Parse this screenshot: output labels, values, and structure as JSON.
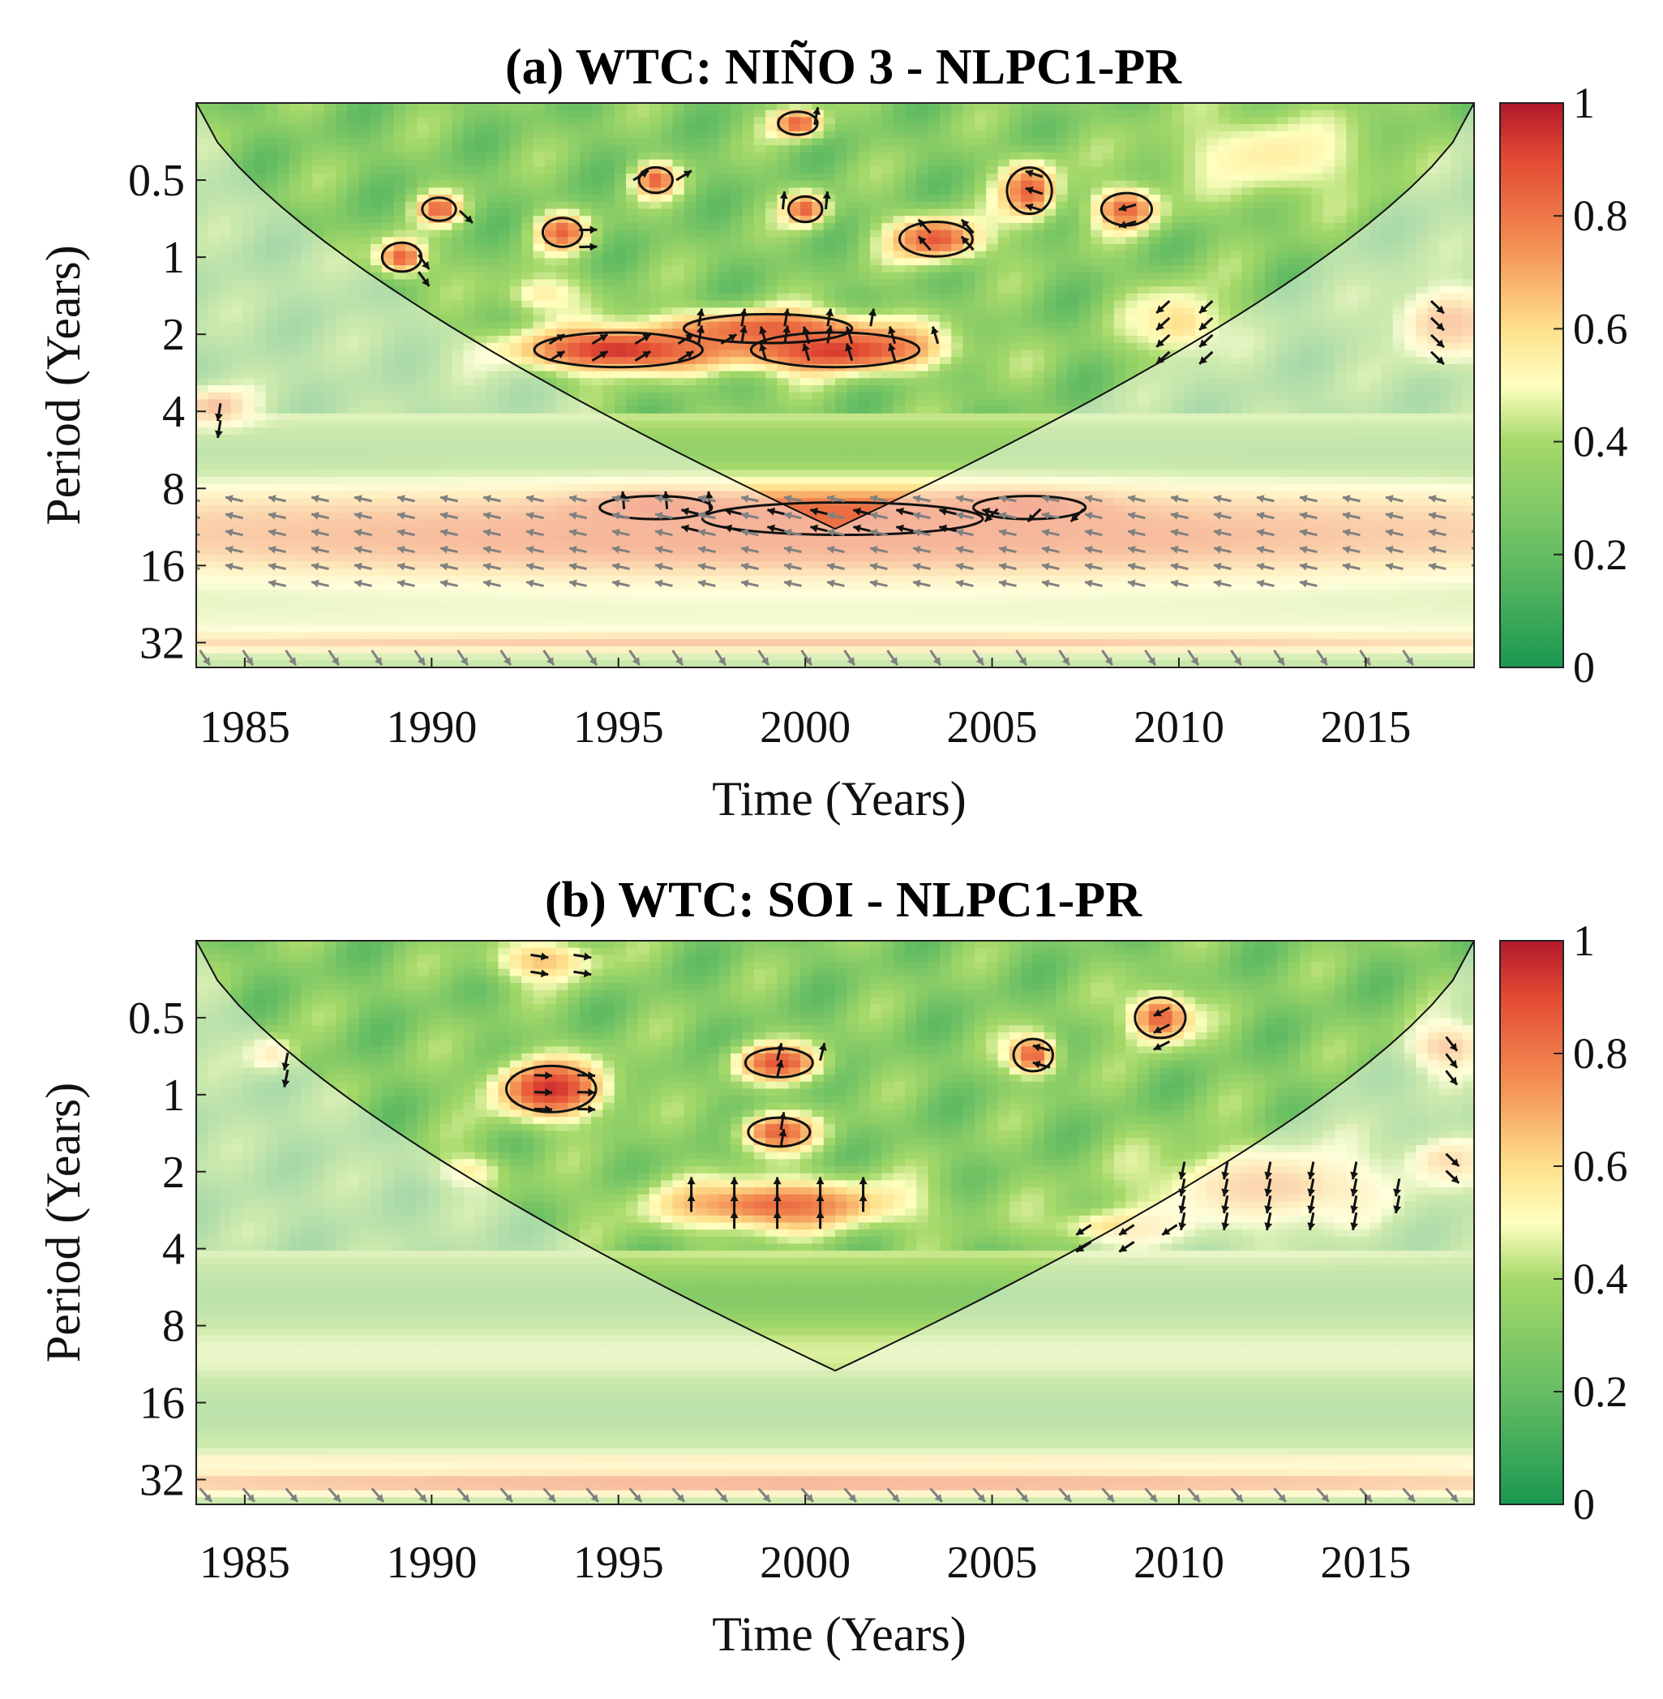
{
  "chart_data": [
    {
      "type": "heatmap",
      "panel": "a",
      "title": "(a) WTC: NIÑO 3 - NLPC1-PR",
      "xlabel": "Time (Years)",
      "ylabel": "Period (Years)",
      "xlim": [
        1983.7,
        2017.9
      ],
      "ylim": [
        0.25,
        40
      ],
      "yscale": "log2",
      "x_ticks": [
        1985,
        1990,
        1995,
        2000,
        2005,
        2010,
        2015
      ],
      "y_ticks": [
        0.5,
        1,
        2,
        4,
        8,
        16,
        32
      ],
      "colorbar": {
        "min": 0,
        "max": 1,
        "ticks": [
          0,
          0.2,
          0.4,
          0.6,
          0.8,
          1
        ],
        "colormap": "green-yellow-red"
      },
      "regions": [
        {
          "x": 1995.0,
          "y": 2.3,
          "rx": 3.0,
          "ry": 0.3,
          "value": 0.95
        },
        {
          "x": 2000.8,
          "y": 2.3,
          "rx": 3.0,
          "ry": 0.3,
          "value": 0.95
        },
        {
          "x": 1999.0,
          "y": 1.9,
          "rx": 3.0,
          "ry": 0.25,
          "value": 0.85
        },
        {
          "x": 2001.0,
          "y": 10.5,
          "rx": 5.0,
          "ry": 0.28,
          "value": 0.97
        },
        {
          "x": 1996.0,
          "y": 9.5,
          "rx": 2.0,
          "ry": 0.2,
          "value": 0.9
        },
        {
          "x": 2006.0,
          "y": 9.5,
          "rx": 2.0,
          "ry": 0.2,
          "value": 0.9
        },
        {
          "x": 2000.0,
          "y": 12.5,
          "rx": 30.0,
          "ry": 0.7,
          "value": 0.8
        },
        {
          "x": 2000.0,
          "y": 32.0,
          "rx": 30.0,
          "ry": 0.12,
          "value": 0.72
        },
        {
          "x": 1984.2,
          "y": 3.8,
          "rx": 1.0,
          "ry": 0.25,
          "value": 0.75
        },
        {
          "x": 2017.2,
          "y": 1.8,
          "rx": 1.6,
          "ry": 0.5,
          "value": 0.72
        },
        {
          "x": 1990.2,
          "y": 0.65,
          "rx": 0.6,
          "ry": 0.2,
          "value": 0.85
        },
        {
          "x": 1989.2,
          "y": 1.0,
          "rx": 0.7,
          "ry": 0.25,
          "value": 0.85
        },
        {
          "x": 1993.5,
          "y": 0.8,
          "rx": 0.7,
          "ry": 0.25,
          "value": 0.85
        },
        {
          "x": 1996.0,
          "y": 0.5,
          "rx": 0.6,
          "ry": 0.22,
          "value": 0.85
        },
        {
          "x": 1999.8,
          "y": 0.3,
          "rx": 0.7,
          "ry": 0.2,
          "value": 0.85
        },
        {
          "x": 2000.0,
          "y": 0.65,
          "rx": 0.6,
          "ry": 0.22,
          "value": 0.85
        },
        {
          "x": 2003.5,
          "y": 0.85,
          "rx": 1.3,
          "ry": 0.3,
          "value": 0.87
        },
        {
          "x": 2006.0,
          "y": 0.55,
          "rx": 0.8,
          "ry": 0.4,
          "value": 0.85
        },
        {
          "x": 2008.6,
          "y": 0.65,
          "rx": 0.9,
          "ry": 0.28,
          "value": 0.85
        },
        {
          "x": 2010.0,
          "y": 1.8,
          "rx": 1.4,
          "ry": 0.5,
          "value": 0.6
        },
        {
          "x": 1993.0,
          "y": 1.4,
          "rx": 1.2,
          "ry": 0.3,
          "value": 0.55
        },
        {
          "x": 2012.5,
          "y": 0.4,
          "rx": 3.0,
          "ry": 0.6,
          "value": 0.55
        }
      ]
    },
    {
      "type": "heatmap",
      "panel": "b",
      "title": "(b) WTC: SOI - NLPC1-PR",
      "xlabel": "Time (Years)",
      "ylabel": "Period (Years)",
      "xlim": [
        1983.7,
        2017.9
      ],
      "ylim": [
        0.25,
        40
      ],
      "yscale": "log2",
      "x_ticks": [
        1985,
        1990,
        1995,
        2000,
        2005,
        2010,
        2015
      ],
      "y_ticks": [
        0.5,
        1,
        2,
        4,
        8,
        16,
        32
      ],
      "colorbar": {
        "min": 0,
        "max": 1,
        "ticks": [
          0,
          0.2,
          0.4,
          0.6,
          0.8,
          1
        ],
        "colormap": "green-yellow-red"
      },
      "regions": [
        {
          "x": 1993.2,
          "y": 0.95,
          "rx": 1.6,
          "ry": 0.4,
          "value": 0.95
        },
        {
          "x": 1999.3,
          "y": 0.75,
          "rx": 1.2,
          "ry": 0.25,
          "value": 0.88
        },
        {
          "x": 1999.3,
          "y": 1.4,
          "rx": 1.1,
          "ry": 0.25,
          "value": 0.85
        },
        {
          "x": 1999.3,
          "y": 2.7,
          "rx": 3.5,
          "ry": 0.35,
          "value": 0.82
        },
        {
          "x": 2006.1,
          "y": 0.7,
          "rx": 0.7,
          "ry": 0.28,
          "value": 0.85
        },
        {
          "x": 2009.5,
          "y": 0.5,
          "rx": 0.9,
          "ry": 0.35,
          "value": 0.85
        },
        {
          "x": 2012.5,
          "y": 2.3,
          "rx": 3.5,
          "ry": 0.55,
          "value": 0.68
        },
        {
          "x": 2017.2,
          "y": 0.65,
          "rx": 1.2,
          "ry": 0.35,
          "value": 0.7
        },
        {
          "x": 2017.2,
          "y": 1.8,
          "rx": 1.2,
          "ry": 0.3,
          "value": 0.65
        },
        {
          "x": 2000.0,
          "y": 33.0,
          "rx": 30.0,
          "ry": 0.15,
          "value": 0.8
        },
        {
          "x": 2000.0,
          "y": 27.0,
          "rx": 30.0,
          "ry": 0.08,
          "value": 0.6
        },
        {
          "x": 1985.7,
          "y": 0.7,
          "rx": 0.7,
          "ry": 0.25,
          "value": 0.6
        },
        {
          "x": 1991.0,
          "y": 2.0,
          "rx": 1.0,
          "ry": 0.25,
          "value": 0.55
        },
        {
          "x": 1993.0,
          "y": 0.3,
          "rx": 1.5,
          "ry": 0.3,
          "value": 0.65
        },
        {
          "x": 2008.5,
          "y": 3.3,
          "rx": 2.0,
          "ry": 0.25,
          "value": 0.6
        }
      ]
    }
  ]
}
